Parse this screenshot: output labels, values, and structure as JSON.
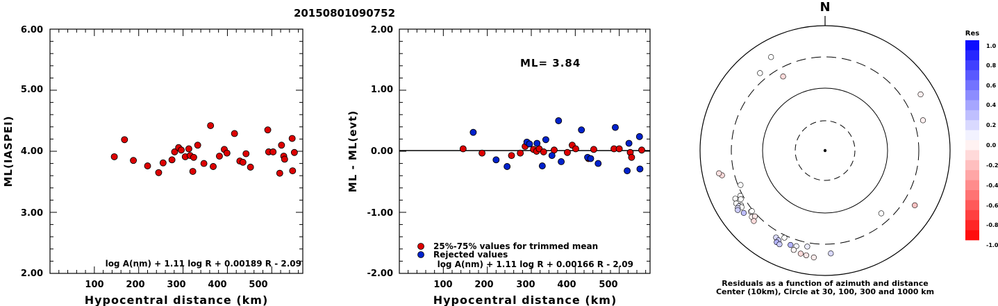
{
  "figure_title": "20150801090752",
  "chart_data": [
    {
      "type": "scatter",
      "xlabel": "Hypocentral distance (km)",
      "ylabel": "ML(IASPEI)",
      "xlim": [
        0,
        570
      ],
      "ylim": [
        2.0,
        6.0
      ],
      "x_ticks": [
        "100",
        "200",
        "300",
        "400",
        "500"
      ],
      "y_ticks": [
        "6.00",
        "5.00",
        "4.00",
        "3.00",
        "2.00"
      ],
      "formula": "log A(nm) + 1.11 log R + 0.00189 R - 2.09",
      "marker_color": "#dd0000",
      "points": [
        {
          "x": 145,
          "y": 3.91
        },
        {
          "x": 168,
          "y": 4.19
        },
        {
          "x": 188,
          "y": 3.85
        },
        {
          "x": 220,
          "y": 3.76
        },
        {
          "x": 245,
          "y": 3.65
        },
        {
          "x": 255,
          "y": 3.81
        },
        {
          "x": 275,
          "y": 3.86
        },
        {
          "x": 281,
          "y": 3.99
        },
        {
          "x": 290,
          "y": 4.06
        },
        {
          "x": 296,
          "y": 4.02
        },
        {
          "x": 305,
          "y": 3.91
        },
        {
          "x": 313,
          "y": 4.04
        },
        {
          "x": 316,
          "y": 3.93
        },
        {
          "x": 322,
          "y": 3.67
        },
        {
          "x": 324,
          "y": 3.9
        },
        {
          "x": 333,
          "y": 4.1
        },
        {
          "x": 347,
          "y": 3.8
        },
        {
          "x": 362,
          "y": 4.42
        },
        {
          "x": 368,
          "y": 3.75
        },
        {
          "x": 382,
          "y": 3.92
        },
        {
          "x": 393,
          "y": 4.03
        },
        {
          "x": 399,
          "y": 3.97
        },
        {
          "x": 416,
          "y": 4.29
        },
        {
          "x": 428,
          "y": 3.84
        },
        {
          "x": 435,
          "y": 3.82
        },
        {
          "x": 442,
          "y": 3.96
        },
        {
          "x": 452,
          "y": 3.74
        },
        {
          "x": 491,
          "y": 4.35
        },
        {
          "x": 493,
          "y": 3.99
        },
        {
          "x": 503,
          "y": 3.99
        },
        {
          "x": 518,
          "y": 3.64
        },
        {
          "x": 522,
          "y": 4.1
        },
        {
          "x": 527,
          "y": 3.92
        },
        {
          "x": 529,
          "y": 3.87
        },
        {
          "x": 546,
          "y": 4.21
        },
        {
          "x": 547,
          "y": 3.68
        },
        {
          "x": 551,
          "y": 3.98
        }
      ]
    },
    {
      "type": "scatter",
      "xlabel": "Hypocentral distance (km)",
      "ylabel": "ML - ML(evt)",
      "xlim": [
        0,
        570
      ],
      "ylim": [
        -2.0,
        2.0
      ],
      "x_ticks": [
        "100",
        "200",
        "300",
        "400",
        "500"
      ],
      "y_ticks": [
        "2.00",
        "1.00",
        "0.00",
        "-1.00",
        "-2.00"
      ],
      "annotation": "ML= 3.84",
      "formula": "log A(nm) + 1.11 log R + 0.00166 R - 2.09",
      "legend": [
        {
          "label": "25%-75% values for trimmed mean",
          "color": "#dd0000"
        },
        {
          "label": "Rejected values",
          "color": "#0022cc"
        }
      ],
      "series": [
        {
          "name": "25%-75% values for trimmed mean",
          "color": "#dd0000",
          "points": [
            {
              "x": 145,
              "y": 0.04
            },
            {
              "x": 188,
              "y": -0.03
            },
            {
              "x": 255,
              "y": -0.07
            },
            {
              "x": 275,
              "y": -0.03
            },
            {
              "x": 286,
              "y": 0.08
            },
            {
              "x": 305,
              "y": 0.03
            },
            {
              "x": 312,
              "y": 0.0
            },
            {
              "x": 318,
              "y": 0.04
            },
            {
              "x": 328,
              "y": -0.01
            },
            {
              "x": 352,
              "y": 0.02
            },
            {
              "x": 382,
              "y": -0.02
            },
            {
              "x": 393,
              "y": 0.1
            },
            {
              "x": 401,
              "y": 0.04
            },
            {
              "x": 430,
              "y": -0.12
            },
            {
              "x": 442,
              "y": 0.03
            },
            {
              "x": 488,
              "y": 0.04
            },
            {
              "x": 500,
              "y": 0.04
            },
            {
              "x": 525,
              "y": -0.02
            },
            {
              "x": 528,
              "y": -0.1
            },
            {
              "x": 551,
              "y": 0.02
            }
          ]
        },
        {
          "name": "Rejected values",
          "color": "#0022cc",
          "points": [
            {
              "x": 168,
              "y": 0.31
            },
            {
              "x": 220,
              "y": -0.14
            },
            {
              "x": 245,
              "y": -0.25
            },
            {
              "x": 290,
              "y": 0.15
            },
            {
              "x": 296,
              "y": 0.12
            },
            {
              "x": 313,
              "y": 0.13
            },
            {
              "x": 325,
              "y": -0.24
            },
            {
              "x": 333,
              "y": 0.19
            },
            {
              "x": 347,
              "y": -0.07
            },
            {
              "x": 362,
              "y": 0.5
            },
            {
              "x": 368,
              "y": -0.17
            },
            {
              "x": 414,
              "y": 0.35
            },
            {
              "x": 428,
              "y": -0.1
            },
            {
              "x": 435,
              "y": -0.12
            },
            {
              "x": 452,
              "y": -0.2
            },
            {
              "x": 491,
              "y": 0.39
            },
            {
              "x": 518,
              "y": -0.32
            },
            {
              "x": 522,
              "y": 0.13
            },
            {
              "x": 546,
              "y": 0.24
            },
            {
              "x": 547,
              "y": -0.29
            }
          ]
        }
      ]
    },
    {
      "type": "scatter",
      "north_label": "N",
      "caption_line1": "Residuals as a function of azimuth and distance",
      "caption_line2": "Center (10km), Circle at 30, 100, 300 and 1000 km",
      "note": "Polar plot: azimuth in degrees clockwise from north, distance in km (log-scaled rings); fill colour = residual",
      "rings_km": [
        30,
        100,
        300,
        1000
      ],
      "colorbar": {
        "title": "Res",
        "range": [
          -1.0,
          1.0
        ],
        "tick_labels": [
          "1.0",
          "0.8",
          "0.6",
          "0.4",
          "0.2",
          "0.0",
          "-0.2",
          "-0.4",
          "-0.6",
          "-0.8",
          "-1.0"
        ],
        "positive_color": "#0022ff",
        "negative_color": "#ff0000"
      },
      "points": [
        {
          "az": 330.0,
          "dist": 520,
          "res": 0.0
        },
        {
          "az": 320.0,
          "dist": 400,
          "res": 0.0
        },
        {
          "az": 330.5,
          "dist": 222,
          "res": -0.15
        },
        {
          "az": 59.5,
          "dist": 580,
          "res": -0.06
        },
        {
          "az": 72.8,
          "dist": 420,
          "res": -0.06
        },
        {
          "az": 121.4,
          "dist": 465,
          "res": -0.24
        },
        {
          "az": 138.2,
          "dist": 215,
          "res": 0.0
        },
        {
          "az": 256.5,
          "dist": 480,
          "res": -0.15
        },
        {
          "az": 257.9,
          "dist": 530,
          "res": -0.12
        },
        {
          "az": 247.8,
          "dist": 275,
          "res": 0.0
        },
        {
          "az": 241.8,
          "dist": 410,
          "res": 0.0
        },
        {
          "az": 241.9,
          "dist": 328,
          "res": 0.0
        },
        {
          "az": 240.0,
          "dist": 345,
          "res": 0.0
        },
        {
          "az": 236.9,
          "dist": 385,
          "res": 0.0
        },
        {
          "az": 239.2,
          "dist": 435,
          "res": 0.0
        },
        {
          "az": 237.1,
          "dist": 420,
          "res": 0.1
        },
        {
          "az": 235.8,
          "dist": 395,
          "res": 0.0
        },
        {
          "az": 236.6,
          "dist": 455,
          "res": 0.12
        },
        {
          "az": 235.7,
          "dist": 475,
          "res": 0.2
        },
        {
          "az": 232.5,
          "dist": 420,
          "res": 0.25
        },
        {
          "az": 230.5,
          "dist": 330,
          "res": -0.04
        },
        {
          "az": 227.8,
          "dist": 365,
          "res": -0.05
        },
        {
          "az": 230.4,
          "dist": 315,
          "res": 0.0
        },
        {
          "az": 226.8,
          "dist": 330,
          "res": -0.1
        },
        {
          "az": 225.3,
          "dist": 385,
          "res": -0.14
        },
        {
          "az": 209.4,
          "dist": 380,
          "res": 0.15
        },
        {
          "az": 207.4,
          "dist": 400,
          "res": 0.2
        },
        {
          "az": 207.8,
          "dist": 440,
          "res": 0.3
        },
        {
          "az": 205.9,
          "dist": 450,
          "res": 0.2
        },
        {
          "az": 205.0,
          "dist": 330,
          "res": 0.0
        },
        {
          "az": 200.1,
          "dist": 390,
          "res": 0.3
        },
        {
          "az": 196.7,
          "dist": 380,
          "res": 0.05
        },
        {
          "az": 197.5,
          "dist": 450,
          "res": -0.04
        },
        {
          "az": 193.3,
          "dist": 480,
          "res": -0.15
        },
        {
          "az": 190.2,
          "dist": 490,
          "res": -0.1
        },
        {
          "az": 186.0,
          "dist": 510,
          "res": -0.08
        },
        {
          "az": 190.5,
          "dist": 350,
          "res": 0.08
        },
        {
          "az": 176.8,
          "dist": 430,
          "res": 0.15
        }
      ]
    }
  ]
}
